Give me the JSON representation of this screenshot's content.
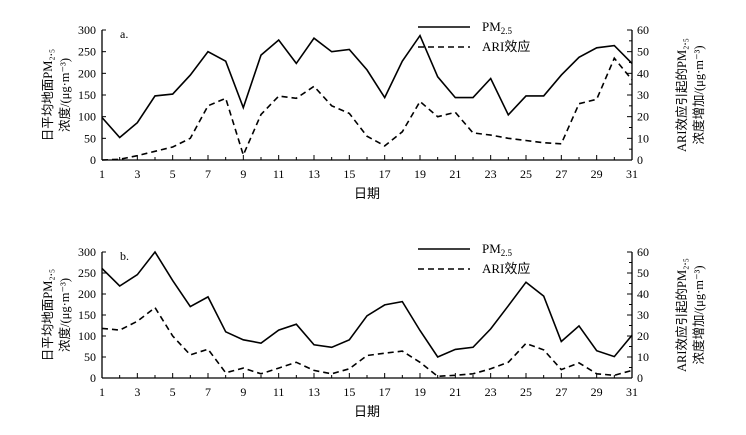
{
  "chart_data": [
    {
      "type": "line",
      "panel_label": "a.",
      "xlabel": "日期",
      "ylabel_left": [
        "日平均地面PM₂.₅",
        "浓度/(μg·m⁻³)"
      ],
      "ylabel_right": [
        "ARI效应引起的PM₂.₅",
        "浓度增加/(μg·m⁻³)"
      ],
      "x": [
        1,
        2,
        3,
        4,
        5,
        6,
        7,
        8,
        9,
        10,
        11,
        12,
        13,
        14,
        15,
        16,
        17,
        18,
        19,
        20,
        21,
        22,
        23,
        24,
        25,
        26,
        27,
        28,
        29,
        30,
        31
      ],
      "x_tick_labels": [
        "1",
        "3",
        "5",
        "7",
        "9",
        "11",
        "13",
        "15",
        "17",
        "19",
        "21",
        "23",
        "25",
        "27",
        "29",
        "31"
      ],
      "ylim_left": [
        0,
        300
      ],
      "ylim_right": [
        0,
        60
      ],
      "y_ticks_left": [
        "0",
        "50",
        "100",
        "150",
        "200",
        "250",
        "300"
      ],
      "y_ticks_right": [
        "0",
        "10",
        "20",
        "30",
        "40",
        "50",
        "60"
      ],
      "legend_position": "top-center",
      "series": [
        {
          "name": "PM2.5",
          "axis": "left",
          "style": "solid",
          "color": "#000000",
          "values": [
            98,
            52,
            86,
            148,
            152,
            196,
            250,
            228,
            121,
            242,
            277,
            223,
            281,
            250,
            255,
            208,
            144,
            228,
            287,
            192,
            144,
            144,
            188,
            104,
            148,
            148,
            196,
            237,
            259,
            264,
            223
          ]
        },
        {
          "name": "ARI效应",
          "axis": "right",
          "style": "dashed",
          "color": "#000000",
          "values": [
            0,
            0.3,
            2,
            4,
            6,
            10,
            25,
            28.5,
            2.3,
            21,
            29.5,
            28.5,
            34,
            25,
            21.5,
            11,
            6.5,
            13,
            27,
            20,
            22,
            12.5,
            11.5,
            10,
            9,
            8,
            7.5,
            26,
            28,
            47,
            37
          ]
        }
      ]
    },
    {
      "type": "line",
      "panel_label": "b.",
      "xlabel": "日期",
      "ylabel_left": [
        "日平均地面PM₂.₅",
        "浓度/(μg·m⁻³)"
      ],
      "ylabel_right": [
        "ARI效应引起的PM₂.₅",
        "浓度增加/(μg·m⁻³)"
      ],
      "x": [
        1,
        2,
        3,
        4,
        5,
        6,
        7,
        8,
        9,
        10,
        11,
        12,
        13,
        14,
        15,
        16,
        17,
        18,
        19,
        20,
        21,
        22,
        23,
        24,
        25,
        26,
        27,
        28,
        29,
        30,
        31
      ],
      "x_tick_labels": [
        "1",
        "3",
        "5",
        "7",
        "9",
        "11",
        "13",
        "15",
        "17",
        "19",
        "21",
        "23",
        "25",
        "27",
        "29",
        "31"
      ],
      "ylim_left": [
        0,
        300
      ],
      "ylim_right": [
        0,
        60
      ],
      "y_ticks_left": [
        "0",
        "50",
        "100",
        "150",
        "200",
        "250",
        "300"
      ],
      "y_ticks_right": [
        "0",
        "10",
        "20",
        "30",
        "40",
        "50",
        "60"
      ],
      "legend_position": "top-center",
      "series": [
        {
          "name": "PM2.5",
          "axis": "left",
          "style": "solid",
          "color": "#000000",
          "values": [
            261,
            219,
            246,
            300,
            232,
            170,
            193,
            110,
            91,
            83,
            114,
            128,
            79,
            73,
            91,
            148,
            174,
            182,
            113,
            50,
            68,
            73,
            117,
            172,
            228,
            195,
            87,
            124,
            65,
            51,
            102
          ]
        },
        {
          "name": "ARI效应",
          "axis": "right",
          "style": "dashed",
          "color": "#000000",
          "values": [
            23.6,
            22.8,
            27,
            33.5,
            20,
            11,
            13.7,
            2.5,
            4.7,
            2,
            4.7,
            7.5,
            3.6,
            2,
            4.4,
            10.7,
            11.8,
            12.8,
            7.5,
            0.8,
            1.3,
            2,
            4.4,
            7.5,
            16.5,
            13.4,
            4,
            7.2,
            2,
            1.3,
            3.6
          ]
        }
      ]
    }
  ]
}
